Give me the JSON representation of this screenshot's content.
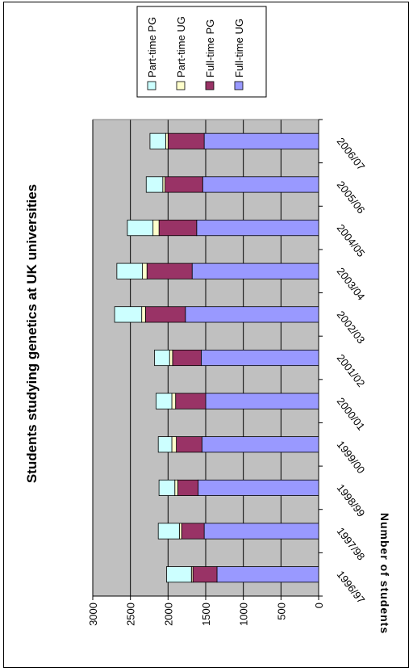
{
  "chart_data": {
    "type": "bar",
    "stacked": true,
    "orientation": "vertical",
    "title": "Students studying genetics at UK universities",
    "ylabel": "Number of students",
    "xlabel": "",
    "ylim": [
      0,
      3000
    ],
    "yticks": [
      0,
      500,
      1000,
      1500,
      2000,
      2500,
      3000
    ],
    "grid": true,
    "legend_position": "right",
    "categories": [
      "1996/97",
      "1997/98",
      "1998/99",
      "1999/00",
      "2000/01",
      "2001/02",
      "2002/03",
      "2003/04",
      "2004/05",
      "2005/06",
      "2006/07"
    ],
    "series": [
      {
        "name": "Full-time UG",
        "color": "#9999ff",
        "values": [
          1350,
          1520,
          1600,
          1550,
          1500,
          1560,
          1770,
          1680,
          1620,
          1540,
          1520
        ]
      },
      {
        "name": "Full-time PG",
        "color": "#993366",
        "values": [
          320,
          300,
          270,
          340,
          400,
          380,
          530,
          600,
          500,
          500,
          480
        ]
      },
      {
        "name": "Part-time UG",
        "color": "#ffffcc",
        "values": [
          20,
          30,
          40,
          60,
          50,
          40,
          50,
          60,
          80,
          30,
          30
        ]
      },
      {
        "name": "Part-time PG",
        "color": "#ccffff",
        "values": [
          330,
          280,
          210,
          180,
          210,
          200,
          360,
          340,
          340,
          220,
          210
        ]
      }
    ],
    "legend_order": [
      "Part-time PG",
      "Part-time UG",
      "Full-time PG",
      "Full-time UG"
    ]
  }
}
